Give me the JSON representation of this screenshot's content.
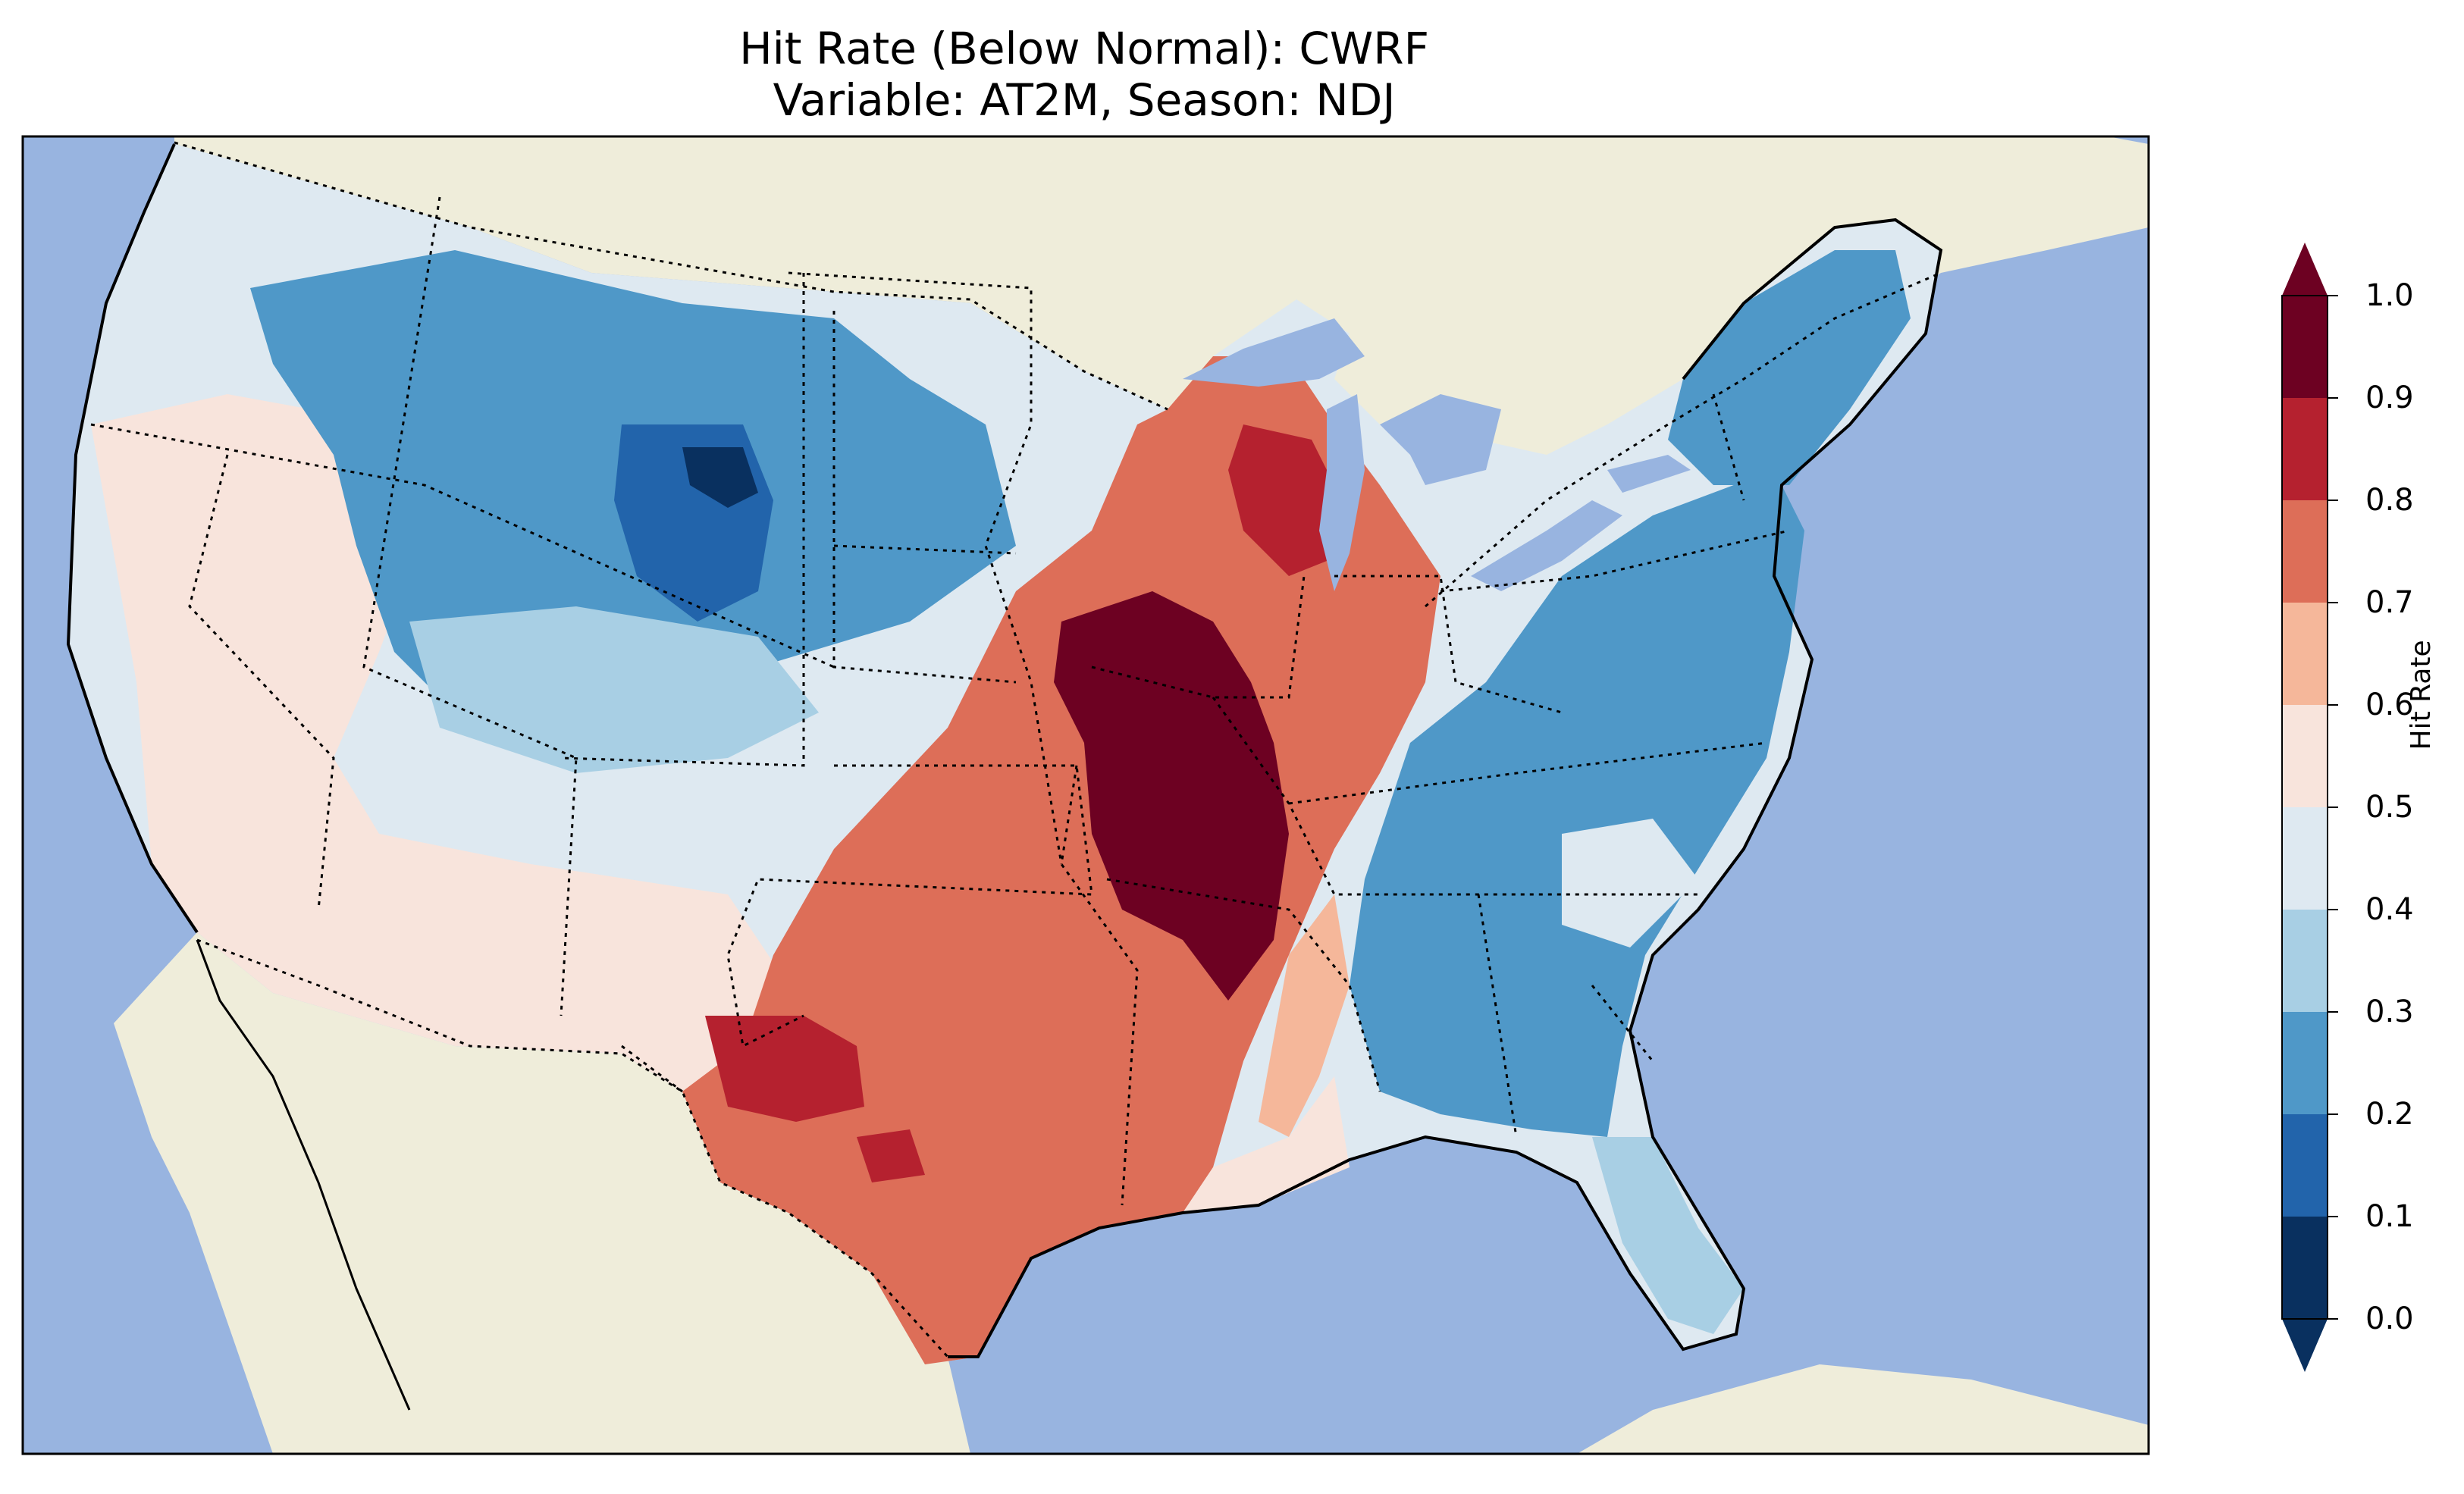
{
  "title": {
    "line1": "Hit Rate (Below Normal): CWRF",
    "line2": "Variable: AT2M, Season: NDJ"
  },
  "map": {
    "region": "Contiguous United States with borders of Canada and Mexico",
    "ocean_color": "#98b4e0",
    "land_color": "#efedda",
    "field": [
      {
        "region": "Pacific Northwest coast",
        "hit_rate": 0.45,
        "color": "#dee9f1"
      },
      {
        "region": "Northern Rockies / Montana / Wyoming",
        "hit_rate": 0.25,
        "color": "#4f98c8"
      },
      {
        "region": "Wyoming core",
        "hit_rate": 0.05,
        "color": "#09305f"
      },
      {
        "region": "Colorado",
        "hit_rate": 0.35,
        "color": "#a8cfe4"
      },
      {
        "region": "Great Basin / Nevada",
        "hit_rate": 0.55,
        "color": "#f8e4dc"
      },
      {
        "region": "Southwest desert",
        "hit_rate": 0.55,
        "color": "#f8e4dc"
      },
      {
        "region": "Southern Plains / Texas",
        "hit_rate": 0.75,
        "color": "#dd6e58"
      },
      {
        "region": "West Texas pocket",
        "hit_rate": 0.85,
        "color": "#b5212f"
      },
      {
        "region": "Missouri / Arkansas",
        "hit_rate": 0.95,
        "color": "#6d0122"
      },
      {
        "region": "Wisconsin",
        "hit_rate": 0.85,
        "color": "#b5212f"
      },
      {
        "region": "Illinois / Indiana",
        "hit_rate": 0.75,
        "color": "#dd6e58"
      },
      {
        "region": "Southeast / Appalachians",
        "hit_rate": 0.25,
        "color": "#4f98c8"
      },
      {
        "region": "Florida peninsula",
        "hit_rate": 0.35,
        "color": "#a8cfe4"
      },
      {
        "region": "Northeast",
        "hit_rate": 0.25,
        "color": "#4f98c8"
      }
    ]
  },
  "colorbar": {
    "label": "Hit Rate",
    "ticks": [
      "0.0",
      "0.1",
      "0.2",
      "0.3",
      "0.4",
      "0.5",
      "0.6",
      "0.7",
      "0.8",
      "0.9",
      "1.0"
    ],
    "colors": [
      "#09305f",
      "#2264ab",
      "#4f98c8",
      "#a8cfe4",
      "#dee9f1",
      "#f8e4dc",
      "#f5b79a",
      "#dd6e58",
      "#b5212f",
      "#6d0122"
    ],
    "extend": "both"
  }
}
